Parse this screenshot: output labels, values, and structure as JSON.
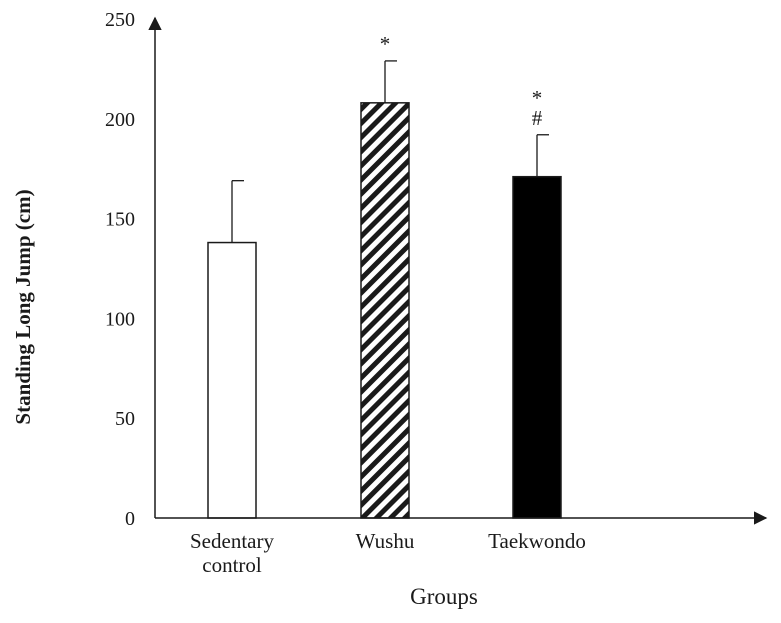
{
  "chart_data": {
    "type": "bar",
    "categories": [
      [
        "Sedentary",
        "control"
      ],
      [
        "Wushu"
      ],
      [
        "Taekwondo"
      ]
    ],
    "values": [
      138,
      208,
      171
    ],
    "errors": [
      31,
      21,
      21
    ],
    "significance": [
      [],
      [
        "*"
      ],
      [
        "*",
        "#"
      ]
    ],
    "fills": [
      "white",
      "hatched",
      "black"
    ],
    "xlabel": "Groups",
    "ylabel": "Standing Long Jump (cm)",
    "ylim": [
      0,
      250
    ],
    "yticks": [
      "0",
      "50",
      "100",
      "150",
      "200",
      "250"
    ],
    "grid": false
  },
  "colors": {
    "axis": "#1a1a1a",
    "bar_edge": "#1a1a1a",
    "black_bar": "#000000",
    "white_bar": "#ffffff"
  }
}
